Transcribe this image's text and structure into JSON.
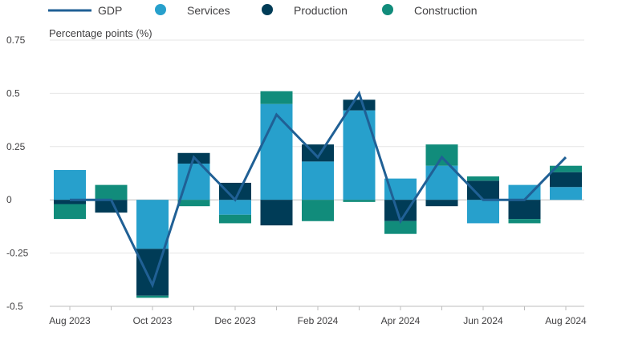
{
  "chart_data": {
    "type": "bar",
    "stacked": true,
    "ylabel": "Percentage points (%)",
    "ylim": [
      -0.5,
      0.75
    ],
    "yticks": [
      -0.5,
      -0.25,
      0,
      0.25,
      0.5,
      0.75
    ],
    "ytick_labels": [
      "-0.5",
      "-0.25",
      "0",
      "0.25",
      "0.5",
      "0.75"
    ],
    "grid": true,
    "legend": "top",
    "categories": [
      "Aug 2023",
      "Sep 2023",
      "Oct 2023",
      "Nov 2023",
      "Dec 2023",
      "Jan 2024",
      "Feb 2024",
      "Mar 2024",
      "Apr 2024",
      "May 2024",
      "Jun 2024",
      "Jul 2024",
      "Aug 2024"
    ],
    "xtick_labels": [
      "Aug 2023",
      "",
      "Oct 2023",
      "",
      "Dec 2023",
      "",
      "Feb 2024",
      "",
      "Apr 2024",
      "",
      "Jun 2024",
      "",
      "Aug 2024"
    ],
    "series": [
      {
        "name": "Services",
        "type": "bar",
        "color": "#27a0cc",
        "values": [
          0.14,
          0.0,
          -0.23,
          0.17,
          -0.07,
          0.45,
          0.18,
          0.42,
          0.1,
          0.16,
          -0.11,
          0.07,
          0.06
        ]
      },
      {
        "name": "Production",
        "type": "bar",
        "color": "#003c57",
        "values": [
          -0.02,
          -0.06,
          -0.22,
          0.05,
          0.08,
          -0.12,
          0.08,
          0.05,
          -0.1,
          -0.03,
          0.09,
          -0.09,
          0.07
        ]
      },
      {
        "name": "Construction",
        "type": "bar",
        "color": "#118c7b",
        "values": [
          -0.07,
          0.07,
          -0.01,
          -0.03,
          -0.04,
          0.06,
          -0.1,
          -0.01,
          -0.06,
          0.1,
          0.02,
          -0.02,
          0.03
        ]
      },
      {
        "name": "GDP",
        "type": "line",
        "color": "#206095",
        "values": [
          0.0,
          0.0,
          -0.4,
          0.2,
          0.0,
          0.4,
          0.2,
          0.5,
          -0.1,
          0.2,
          0.0,
          0.0,
          0.2
        ]
      }
    ]
  }
}
